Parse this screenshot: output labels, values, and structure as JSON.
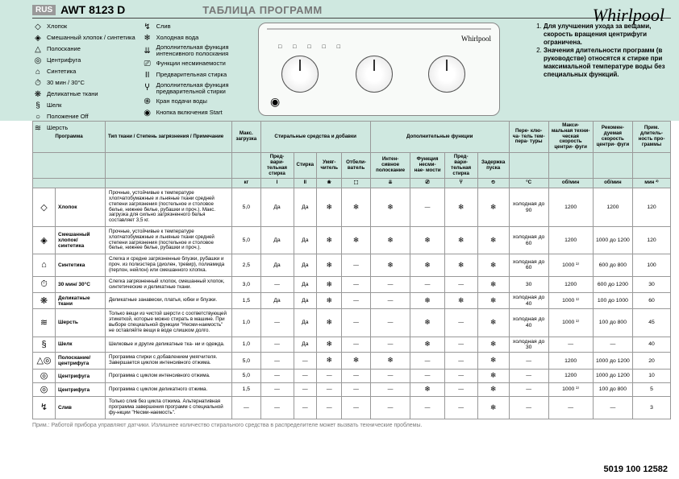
{
  "header": {
    "lang_badge": "RUS",
    "model": "AWT 8123 D",
    "title": "ТАБЛИЦА ПРОГРАММ",
    "brand": "Whirlpool"
  },
  "legend_col1": [
    {
      "icon": "◇",
      "label": "Хлопок"
    },
    {
      "icon": "◈",
      "label": "Смешанный хлопок / синтетика"
    },
    {
      "icon": "△",
      "label": "Полоскание"
    },
    {
      "icon": "◎",
      "label": "Центрифуга"
    },
    {
      "icon": "⌂",
      "label": "Синтетика"
    },
    {
      "icon": "⏱",
      "label": "30 мин / 30°C"
    },
    {
      "icon": "❋",
      "label": "Деликатные ткани"
    },
    {
      "icon": "§",
      "label": "Шелк"
    },
    {
      "icon": "○",
      "label": "Положение Off"
    },
    {
      "icon": "≋",
      "label": "Шерсть"
    }
  ],
  "legend_col2": [
    {
      "icon": "↯",
      "label": "Слив"
    },
    {
      "icon": "❄",
      "label": "Холодная вода"
    },
    {
      "icon": "⇊",
      "label": "Дополнительная функция интенсивного полоскания"
    },
    {
      "icon": "⎚",
      "label": "Функции несминаемости"
    },
    {
      "icon": "II",
      "label": "Предварительная стирка"
    },
    {
      "icon": "Ⴤ",
      "label": "Дополнительная функция предварительной стирки"
    },
    {
      "icon": "֍",
      "label": "Кран подачи воды"
    },
    {
      "icon": "◉",
      "label": "Кнопка включения Start"
    }
  ],
  "notes": [
    "Для улучшения ухода за вещами, скорость вращения центрифуги ограничена.",
    "Значения длительности программ (в руководстве) относятся к стирке при максимальной температуре воды без специальных функций."
  ],
  "table": {
    "top_headers": [
      "Программа",
      "Тип ткани / Степень загрязнения / Примечание",
      "Макс. загрузка",
      "Стиральные средства и добавки",
      "Дополнительные функции",
      "Пере- клю- ча- тель тем- пера- туры",
      "Макси- мальная техни- ческая скорость центри- фуги",
      "Рекомен- дуемая скорость центри- фуги",
      "Прим. длитель- ность про- граммы"
    ],
    "sub_add": [
      "Пред- вари- тельная стирка",
      "Стирка",
      "Умяг- читель",
      "Отбели- ватель",
      "Интен- сивное полоскание",
      "Функция несми- нае- мости",
      "Пред- вари- тельная стирка",
      "Задержка пуска"
    ],
    "units": [
      "кг",
      "",
      "",
      "",
      "",
      "",
      "",
      "",
      "°C",
      "об/мин",
      "об/мин",
      "мин ²⁾"
    ],
    "sub_icons": [
      "I",
      "II",
      "❀",
      "⬚",
      "⇊",
      "⎚",
      "Ⴤ",
      "⏲"
    ],
    "rows": [
      {
        "icon": "◇",
        "name": "Хлопок",
        "desc": "Прочные, устойчивые к температуре хлопчатобумажные и льняные ткани средней степени загрязнения (постельное и столовое белье, нижнее белье, рубашки и проч.). Макс. загрузка для сильно загрязненного белья составляет 3,5 кг.",
        "load": "5,0",
        "c1": "Да",
        "c2": "Да",
        "c3": "❄",
        "c4": "❄",
        "c5": "❄",
        "c6": "—",
        "c7": "❄",
        "c8": "❄",
        "temp": "холодная до 90",
        "spin": "1200",
        "rspin": "1200",
        "dur": "120"
      },
      {
        "icon": "◈",
        "name": "Смешанный хлопок/ синтетика",
        "desc": "Прочные, устойчивые к температуре хлопчатобумажные и льняные ткани средней степени загрязнения (постельное и столовое белье, нижнее белье, рубашки и проч.).",
        "load": "5,0",
        "c1": "Да",
        "c2": "Да",
        "c3": "❄",
        "c4": "❄",
        "c5": "❄",
        "c6": "❄",
        "c7": "❄",
        "c8": "❄",
        "temp": "холодная до 60",
        "spin": "1200",
        "rspin": "1000 до 1200",
        "dur": "120"
      },
      {
        "icon": "⌂",
        "name": "Синтетика",
        "desc": "Слегка и средне загрязненные блузки, рубашки и проч. из полиэстера (диолен, тревир), полиамида (перлон, нейлон) или смешанного хлопка.",
        "load": "2,5",
        "c1": "Да",
        "c2": "Да",
        "c3": "❄",
        "c4": "—",
        "c5": "❄",
        "c6": "❄",
        "c7": "❄",
        "c8": "❄",
        "temp": "холодная до 60",
        "spin": "1000 ¹⁾",
        "rspin": "600 до 800",
        "dur": "100"
      },
      {
        "icon": "⏱",
        "name": "30 мин/ 30°C",
        "desc": "Слегка загрязненный хлопок, смешанный хлопок, синтетические и деликатные ткани.",
        "load": "3,0",
        "c1": "—",
        "c2": "Да",
        "c3": "❄",
        "c4": "—",
        "c5": "—",
        "c6": "—",
        "c7": "—",
        "c8": "❄",
        "temp": "30",
        "spin": "1200",
        "rspin": "600 до 1200",
        "dur": "30"
      },
      {
        "icon": "❋",
        "name": "Деликатные ткани",
        "desc": "Деликатные занавески, платья, юбки и блузки.",
        "load": "1,5",
        "c1": "Да",
        "c2": "Да",
        "c3": "❄",
        "c4": "—",
        "c5": "—",
        "c6": "❄",
        "c7": "❄",
        "c8": "❄",
        "temp": "холодная до 40",
        "spin": "1000 ¹⁾",
        "rspin": "100 до 1000",
        "dur": "60"
      },
      {
        "icon": "≋",
        "name": "Шерсть",
        "desc": "Только вещи из чистой шерсти с соответствующей этикеткой, которые можно стирать в машине. При выборе специальной функции \"Несми-наемость\" не оставляйте вещи в воде слишком долго.",
        "load": "1,0",
        "c1": "—",
        "c2": "Да",
        "c3": "❄",
        "c4": "—",
        "c5": "—",
        "c6": "❄",
        "c7": "—",
        "c8": "❄",
        "temp": "холодная до 40",
        "spin": "1000 ¹⁾",
        "rspin": "100 до 800",
        "dur": "45"
      },
      {
        "icon": "§",
        "name": "Шелк",
        "desc": "Шелковые и другие деликатные тка- ни и одежда.",
        "load": "1,0",
        "c1": "—",
        "c2": "Да",
        "c3": "❄",
        "c4": "—",
        "c5": "—",
        "c6": "❄",
        "c7": "—",
        "c8": "❄",
        "temp": "холодная до 30",
        "spin": "—",
        "rspin": "—",
        "dur": "40"
      },
      {
        "icon": "△◎",
        "name": "Полоскание/ центрифуга",
        "desc": "Программа стирки с добавлением умягчителя. Завершается циклом интенсивного отжима.",
        "load": "5,0",
        "c1": "—",
        "c2": "—",
        "c3": "❄",
        "c4": "❄",
        "c5": "❄",
        "c6": "—",
        "c7": "—",
        "c8": "❄",
        "temp": "—",
        "spin": "1200",
        "rspin": "1000 до 1200",
        "dur": "20"
      },
      {
        "icon": "◎",
        "name": "Центрифуга",
        "desc": "Программа с циклом интенсивного отжима.",
        "load": "5,0",
        "c1": "—",
        "c2": "—",
        "c3": "—",
        "c4": "—",
        "c5": "—",
        "c6": "—",
        "c7": "—",
        "c8": "❄",
        "temp": "—",
        "spin": "1200",
        "rspin": "1000 до 1200",
        "dur": "10"
      },
      {
        "icon": "◎",
        "name": "Центрифуга",
        "desc": "Программа с циклом деликатного отжима.",
        "load": "1,5",
        "c1": "—",
        "c2": "—",
        "c3": "—",
        "c4": "—",
        "c5": "—",
        "c6": "❄",
        "c7": "—",
        "c8": "❄",
        "temp": "—",
        "spin": "1000 ¹⁾",
        "rspin": "100 до 800",
        "dur": "5"
      },
      {
        "icon": "↯",
        "name": "Слив",
        "desc": "Только слив без цикла отжима. Альтернативная программа завершения программ с специальной фу-нкции \"Несми-наемость\".",
        "load": "—",
        "c1": "—",
        "c2": "—",
        "c3": "—",
        "c4": "—",
        "c5": "—",
        "c6": "—",
        "c7": "—",
        "c8": "❄",
        "temp": "—",
        "spin": "—",
        "rspin": "—",
        "dur": "3"
      }
    ]
  },
  "footnote": "Прим.: Работой прибора управляют датчики. Излишнее количество стирального средства в распределителе может вызвать технические проблемы.",
  "doc_code": "5019 100 12582"
}
